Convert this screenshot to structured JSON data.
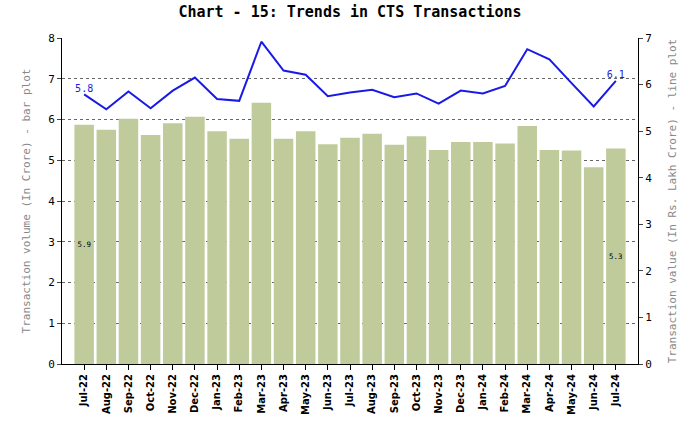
{
  "chart_data": {
    "type": "bar",
    "title": "Chart - 15: Trends in CTS Transactions",
    "y_label": "Transaction volume (In Crore) - bar plot",
    "y2_label": "Transaction value (In Rs. Lakh Crore) - line plot",
    "categories": [
      "Jul-22",
      "Aug-22",
      "Sep-22",
      "Oct-22",
      "Nov-22",
      "Dec-22",
      "Jan-23",
      "Feb-23",
      "Mar-23",
      "Apr-23",
      "May-23",
      "Jun-23",
      "Jul-23",
      "Aug-23",
      "Sep-23",
      "Oct-23",
      "Nov-23",
      "Dec-23",
      "Jan-24",
      "Feb-24",
      "Mar-24",
      "Apr-24",
      "May-24",
      "Jun-24",
      "Jul-24"
    ],
    "series": [
      {
        "type": "bar",
        "color": "#bfcb9b",
        "values": [
          5.87,
          5.75,
          6.02,
          5.62,
          5.91,
          6.07,
          5.71,
          5.53,
          6.41,
          5.53,
          5.71,
          5.39,
          5.55,
          5.65,
          5.38,
          5.59,
          5.25,
          5.45,
          5.45,
          5.41,
          5.84,
          5.25,
          5.24,
          4.83,
          5.29
        ],
        "value_labels": [
          "5.9",
          null,
          null,
          null,
          null,
          null,
          null,
          null,
          null,
          null,
          null,
          null,
          null,
          null,
          null,
          null,
          null,
          null,
          null,
          null,
          null,
          null,
          null,
          null,
          "5.3"
        ]
      },
      {
        "type": "line",
        "axis": "y2",
        "color": "#1a1ae6",
        "values": [
          5.79,
          5.47,
          5.85,
          5.49,
          5.87,
          6.15,
          5.69,
          5.65,
          6.92,
          6.3,
          6.21,
          5.75,
          5.83,
          5.89,
          5.73,
          5.81,
          5.59,
          5.87,
          5.81,
          5.97,
          6.76,
          6.54,
          6.03,
          5.53,
          6.08
        ],
        "value_labels": [
          "5.8",
          null,
          null,
          null,
          null,
          null,
          null,
          null,
          null,
          null,
          null,
          null,
          null,
          null,
          null,
          null,
          null,
          null,
          null,
          null,
          null,
          null,
          null,
          null,
          "6.1"
        ]
      }
    ],
    "ylim": [
      0,
      8
    ],
    "yticks": [
      0,
      1,
      2,
      3,
      4,
      5,
      6,
      7,
      8
    ],
    "y2lim": [
      0,
      7
    ],
    "y2ticks": [
      0,
      1,
      2,
      3,
      4,
      5,
      6,
      7
    ],
    "grid": true,
    "data_labels": true
  }
}
